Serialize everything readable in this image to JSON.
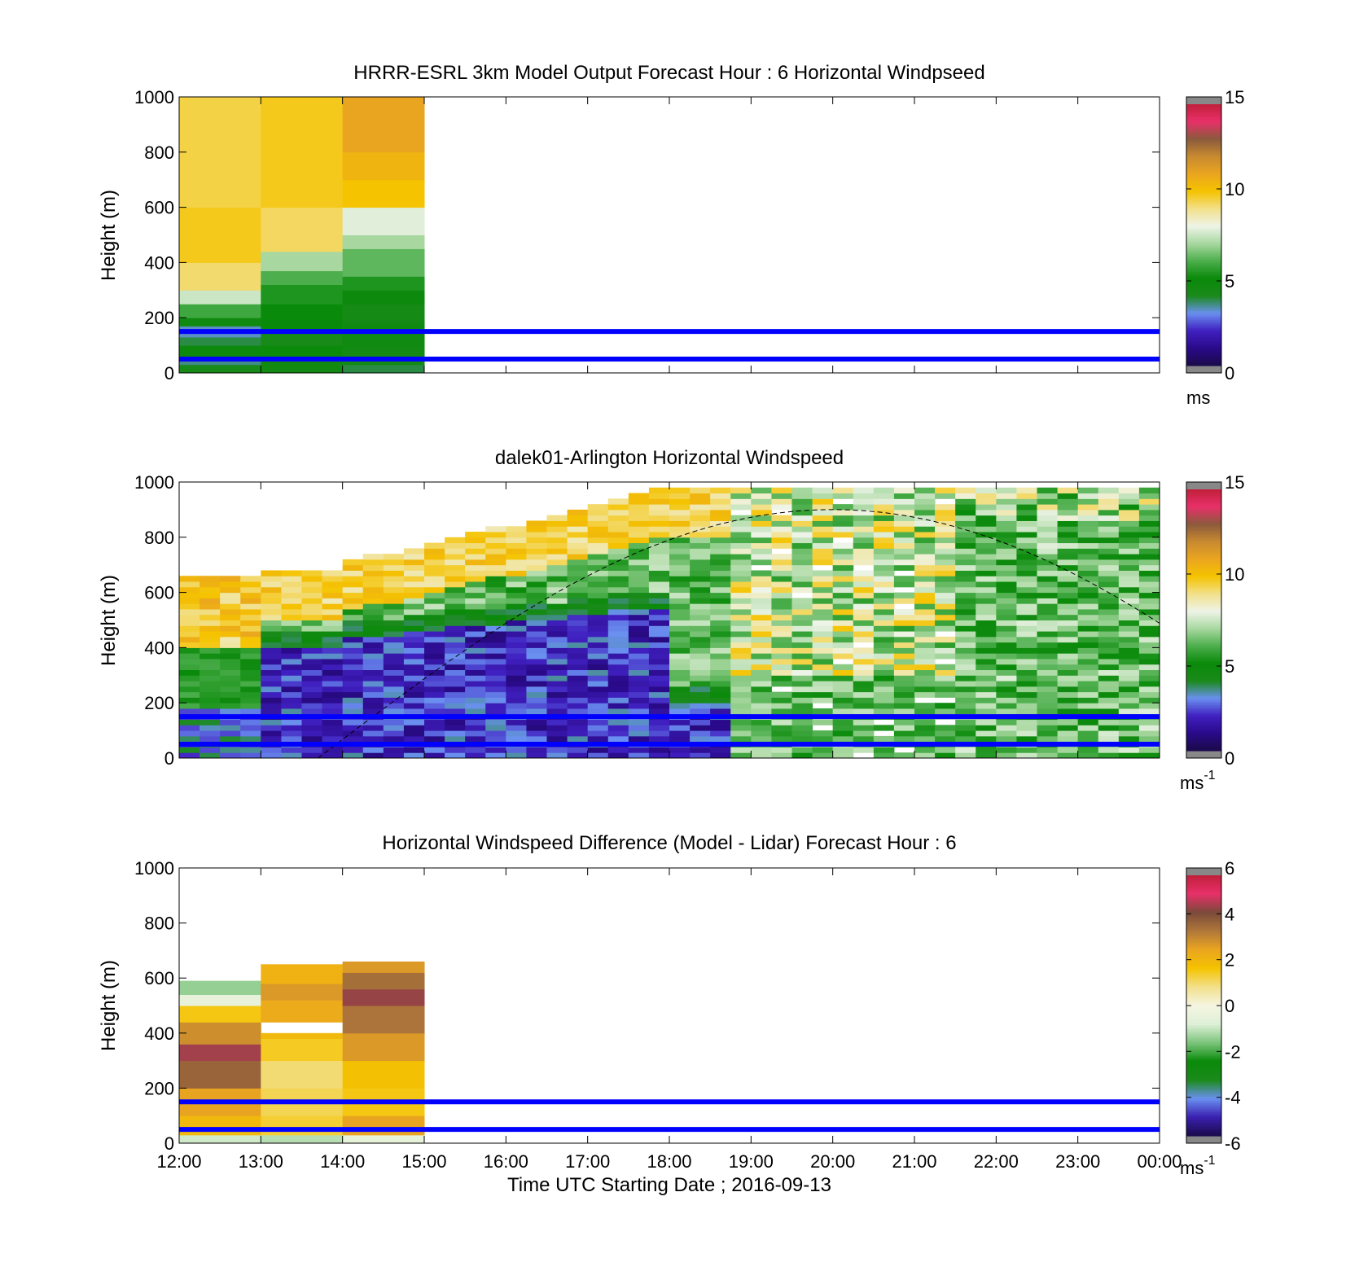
{
  "x_axis": {
    "label": "Time UTC  Starting Date ; 2016-09-13",
    "ticks": [
      "12:00",
      "13:00",
      "14:00",
      "15:00",
      "16:00",
      "17:00",
      "18:00",
      "19:00",
      "20:00",
      "21:00",
      "22:00",
      "23:00",
      "00:00"
    ]
  },
  "marker_lines": {
    "heights_m": [
      150,
      50
    ],
    "color": "#0000ff"
  },
  "colorscales": {
    "windspeed": [
      "#1a0a4a",
      "#2a0a8a",
      "#4020c0",
      "#6a90f0",
      "#1a8a1a",
      "#0a8a0a",
      "#4cae4c",
      "#a8d8a0",
      "#eef4e8",
      "#f2e08a",
      "#f5c300",
      "#eaa520",
      "#c88a30",
      "#8b5a3c",
      "#e8306a",
      "#c0203a"
    ],
    "difference": [
      "#1a0a4a",
      "#3a20b0",
      "#6a90f0",
      "#1a8a1a",
      "#0a8a0a",
      "#7cc47c",
      "#dff0d8",
      "#f5f5e0",
      "#f2e08a",
      "#f5c300",
      "#eaa520",
      "#b0783a",
      "#7a4a3a",
      "#e8306a",
      "#c0203a"
    ],
    "end_gray": "#888888"
  },
  "chart_data": [
    {
      "type": "heatmap",
      "id": "model",
      "title": "HRRR-ESRL 3km Model Output   Forecast Hour : 6 Horizontal Windpseed",
      "ylabel": "Height (m)",
      "ylim": [
        0,
        1000
      ],
      "yticks": [
        0,
        200,
        400,
        600,
        800,
        1000
      ],
      "colorbar": {
        "range": [
          0,
          15
        ],
        "ticks": [
          0,
          5,
          10,
          15
        ],
        "unit": "ms",
        "unit_sup": "",
        "scale": "windspeed"
      },
      "x_hours": [
        0,
        1,
        2
      ],
      "columns": [
        [
          [
            0,
            30,
            4.2
          ],
          [
            30,
            60,
            3.5
          ],
          [
            60,
            100,
            4.8
          ],
          [
            100,
            130,
            3.8
          ],
          [
            130,
            170,
            3.2
          ],
          [
            170,
            200,
            4.6
          ],
          [
            200,
            250,
            5.8
          ],
          [
            250,
            300,
            7.5
          ],
          [
            300,
            400,
            9.2
          ],
          [
            400,
            600,
            9.8
          ],
          [
            600,
            1000,
            9.5
          ]
        ],
        [
          [
            0,
            60,
            4.5
          ],
          [
            60,
            100,
            4.9
          ],
          [
            100,
            150,
            4.2
          ],
          [
            150,
            250,
            5.0
          ],
          [
            250,
            320,
            5.3
          ],
          [
            320,
            370,
            6.0
          ],
          [
            370,
            440,
            7.0
          ],
          [
            440,
            600,
            9.3
          ],
          [
            600,
            1000,
            9.8
          ]
        ],
        [
          [
            0,
            30,
            3.8
          ],
          [
            30,
            90,
            4.4
          ],
          [
            90,
            180,
            4.6
          ],
          [
            180,
            250,
            4.3
          ],
          [
            250,
            300,
            4.8
          ],
          [
            300,
            350,
            5.3
          ],
          [
            350,
            450,
            6.2
          ],
          [
            450,
            500,
            7.0
          ],
          [
            500,
            600,
            7.8
          ],
          [
            600,
            700,
            10.0
          ],
          [
            700,
            800,
            10.5
          ],
          [
            800,
            1000,
            11.0
          ]
        ]
      ]
    },
    {
      "type": "heatmap",
      "id": "lidar",
      "title": "dalek01-Arlington  Horizontal Windspeed",
      "ylabel": "Height (m)",
      "ylim": [
        0,
        1000
      ],
      "yticks": [
        0,
        200,
        400,
        600,
        800,
        1000
      ],
      "colorbar": {
        "range": [
          0,
          15
        ],
        "ticks": [
          0,
          5,
          10,
          15
        ],
        "unit": "ms",
        "unit_sup": "-1",
        "scale": "windspeed"
      },
      "dashed_curve_peak_m": 900
    },
    {
      "type": "heatmap",
      "id": "difference",
      "title": "Horizontal Windspeed Difference (Model - Lidar) Forecast Hour : 6",
      "ylabel": "Height (m)",
      "ylim": [
        0,
        1000
      ],
      "yticks": [
        0,
        200,
        400,
        600,
        800,
        1000
      ],
      "colorbar": {
        "range": [
          -6,
          6
        ],
        "ticks": [
          -6,
          -4,
          -2,
          0,
          2,
          4,
          6
        ],
        "unit": "ms",
        "unit_sup": "-1",
        "scale": "difference"
      },
      "x_hours": [
        0,
        1,
        2
      ],
      "columns": [
        [
          [
            0,
            30,
            -1.0
          ],
          [
            30,
            100,
            2.0
          ],
          [
            100,
            200,
            2.6
          ],
          [
            200,
            300,
            3.8
          ],
          [
            300,
            360,
            4.6
          ],
          [
            360,
            440,
            3.0
          ],
          [
            440,
            500,
            1.6
          ],
          [
            500,
            540,
            -0.5
          ],
          [
            540,
            590,
            -1.5
          ]
        ],
        [
          [
            0,
            30,
            -1.2
          ],
          [
            30,
            100,
            1.4
          ],
          [
            100,
            200,
            1.2
          ],
          [
            200,
            300,
            1.0
          ],
          [
            300,
            380,
            1.5
          ],
          [
            380,
            400,
            2.0
          ],
          [
            400,
            440,
            null
          ],
          [
            440,
            520,
            2.4
          ],
          [
            520,
            580,
            2.8
          ],
          [
            580,
            650,
            2.2
          ]
        ],
        [
          [
            0,
            30,
            -0.6
          ],
          [
            30,
            100,
            2.6
          ],
          [
            100,
            200,
            1.6
          ],
          [
            200,
            300,
            1.8
          ],
          [
            300,
            400,
            2.8
          ],
          [
            400,
            500,
            3.5
          ],
          [
            500,
            560,
            4.5
          ],
          [
            560,
            620,
            3.6
          ],
          [
            620,
            660,
            2.8
          ]
        ]
      ]
    }
  ]
}
